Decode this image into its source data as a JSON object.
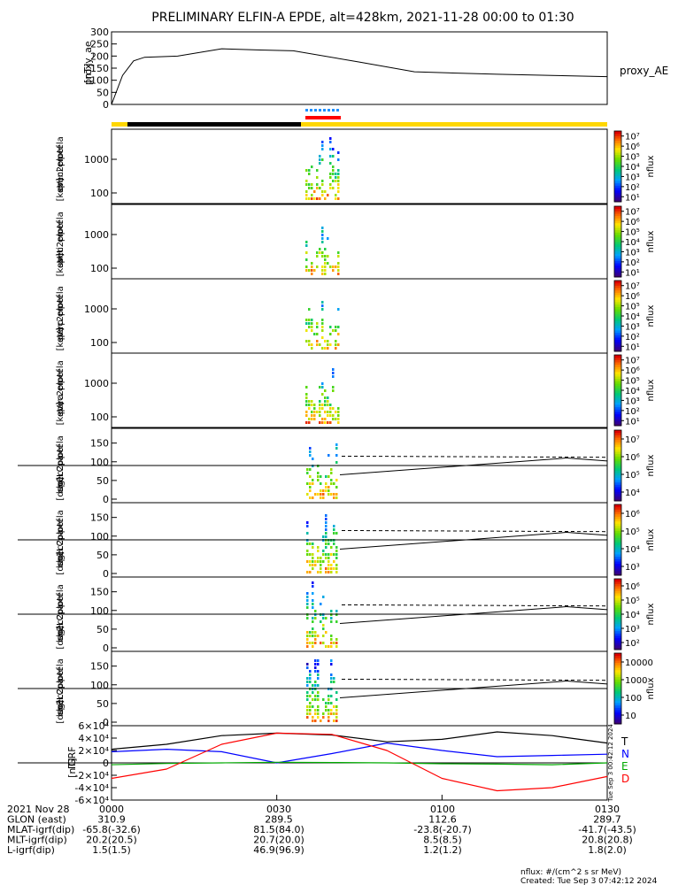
{
  "title": "PRELIMINARY ELFIN-A EPDE, alt=428km, 2021-11-28 00:00 to 01:30",
  "chart_data": [
    {
      "type": "line",
      "panel": "proxy_ae",
      "ylabel": "proxy_ae\n[nT]",
      "legend": "proxy_AE",
      "ylim": [
        0,
        300
      ],
      "yticks": [
        0,
        50,
        100,
        150,
        200,
        250,
        300
      ],
      "x": [
        0,
        2,
        4,
        6,
        12,
        20,
        27,
        33,
        45,
        55,
        62,
        70,
        80,
        90
      ],
      "values": [
        0,
        120,
        180,
        195,
        200,
        230,
        225,
        222,
        175,
        135,
        130,
        125,
        120,
        115
      ]
    },
    {
      "type": "heatmap",
      "panel": "omni",
      "ylabel": "ela\npef\nen\nspec2plot\nomni\n[keV]",
      "ytick_labels": [
        "100",
        "1000"
      ],
      "colorbar_label": "nflux",
      "colorbar_ticks": [
        "10¹",
        "10²",
        "10³",
        "10⁴",
        "10⁵",
        "10⁶",
        "10⁷"
      ]
    },
    {
      "type": "heatmap",
      "panel": "anti",
      "ylabel": "ela\npef\nen\nspec2plot\nanti\n[keV]",
      "ytick_labels": [
        "100",
        "1000"
      ],
      "colorbar_label": "nflux",
      "colorbar_ticks": [
        "10¹",
        "10²",
        "10³",
        "10⁴",
        "10⁵",
        "10⁶",
        "10⁷"
      ]
    },
    {
      "type": "heatmap",
      "panel": "perp",
      "ylabel": "ela\npef\nen\nspec2plot\nperp\n[keV]",
      "ytick_labels": [
        "100",
        "1000"
      ],
      "colorbar_label": "nflux",
      "colorbar_ticks": [
        "10¹",
        "10²",
        "10³",
        "10⁴",
        "10⁵",
        "10⁶",
        "10⁷"
      ]
    },
    {
      "type": "heatmap",
      "panel": "para",
      "ylabel": "ela\npef\nen\nspec2plot\npara\n[keV]",
      "ytick_labels": [
        "100",
        "1000"
      ],
      "colorbar_label": "nflux",
      "colorbar_ticks": [
        "10¹",
        "10²",
        "10³",
        "10⁴",
        "10⁵",
        "10⁶",
        "10⁷"
      ]
    },
    {
      "type": "heatmap",
      "panel": "ch0LC",
      "ylabel": "ela\npef\npa\nspec2plot\nch0LC\n[deg]",
      "yticks": [
        0,
        50,
        100,
        150
      ],
      "colorbar_label": "nflux",
      "colorbar_ticks": [
        "10⁴",
        "10⁵",
        "10⁶",
        "10⁷"
      ]
    },
    {
      "type": "heatmap",
      "panel": "ch1LC",
      "ylabel": "ela\npef\npa\nspec2plot\nch1LC\n[deg]",
      "yticks": [
        0,
        50,
        100,
        150
      ],
      "colorbar_label": "nflux",
      "colorbar_ticks": [
        "10³",
        "10⁴",
        "10⁵",
        "10⁶"
      ]
    },
    {
      "type": "heatmap",
      "panel": "ch2LC",
      "ylabel": "ela\npef\npa\nspec2plot\nch2LC\n[deg]",
      "yticks": [
        0,
        50,
        100,
        150
      ],
      "colorbar_label": "nflux",
      "colorbar_ticks": [
        "10²",
        "10³",
        "10⁴",
        "10⁵",
        "10⁶"
      ]
    },
    {
      "type": "heatmap",
      "panel": "ch3LC",
      "ylabel": "ela\npef\npa\nspec2plot\nch3LC\n[deg]",
      "yticks": [
        0,
        50,
        100,
        150
      ],
      "colorbar_label": "nflux",
      "colorbar_ticks": [
        "10",
        "100",
        "1000",
        "10000"
      ]
    },
    {
      "type": "line",
      "panel": "IGRF",
      "ylabel": "IGRF\n[nT]",
      "ytick_labels": [
        "-6×10⁴",
        "-4×10⁴",
        "-2×10⁴",
        "0",
        "2×10⁴",
        "4×10⁴",
        "6×10⁴"
      ],
      "ylim": [
        -60000,
        60000
      ],
      "legend": [
        "T",
        "N",
        "E",
        "D"
      ],
      "series": [
        {
          "name": "T",
          "color": "#000000",
          "x": [
            0,
            10,
            20,
            30,
            40,
            50,
            60,
            70,
            80,
            90
          ],
          "values": [
            22000,
            30000,
            44000,
            48000,
            45000,
            34000,
            38000,
            50000,
            44000,
            32000
          ]
        },
        {
          "name": "N",
          "color": "#0000ff",
          "x": [
            0,
            10,
            20,
            30,
            40,
            50,
            60,
            70,
            80,
            90
          ],
          "values": [
            18000,
            22000,
            18000,
            0,
            15000,
            32000,
            20000,
            10000,
            12000,
            14000
          ]
        },
        {
          "name": "E",
          "color": "#00aa00",
          "x": [
            0,
            10,
            20,
            30,
            40,
            50,
            60,
            70,
            80,
            90
          ],
          "values": [
            -3000,
            -1000,
            0,
            1000,
            500,
            0,
            -1500,
            -2000,
            -3000,
            0
          ]
        },
        {
          "name": "D",
          "color": "#ff0000",
          "x": [
            0,
            10,
            20,
            30,
            40,
            50,
            60,
            70,
            80,
            90
          ],
          "values": [
            -25000,
            -10000,
            30000,
            48000,
            46000,
            20000,
            -25000,
            -45000,
            -40000,
            -22000
          ]
        }
      ]
    }
  ],
  "x_axis": {
    "tick_labels": [
      "0000",
      "0030",
      "0100",
      "0130"
    ],
    "rows": [
      {
        "label": "2021 Nov 28",
        "values": [
          "0000",
          "0030",
          "0100",
          "0130"
        ]
      },
      {
        "label": "GLON (east)",
        "values": [
          "310.9",
          "289.5",
          "112.6",
          "289.7"
        ]
      },
      {
        "label": "MLAT-igrf(dip)",
        "values": [
          "-65.8(-32.6)",
          "81.5(84.0)",
          "-23.8(-20.7)",
          "-41.7(-43.5)"
        ]
      },
      {
        "label": "MLT-igrf(dip)",
        "values": [
          "20.2(20.5)",
          "20.7(20.0)",
          "8.5(8.5)",
          "20.8(20.8)"
        ]
      },
      {
        "label": "L-igrf(dip)",
        "values": [
          "1.5(1.5)",
          "46.9(96.9)",
          "1.2(1.2)",
          "1.8(2.0)"
        ]
      }
    ]
  },
  "footer": {
    "units": "nflux: #/(cm^2 s sr MeV)",
    "created": "Created: Tue Sep  3 07:42:12 2024"
  },
  "side_stamp": "Tue Sep  3 00:42:12 2024"
}
